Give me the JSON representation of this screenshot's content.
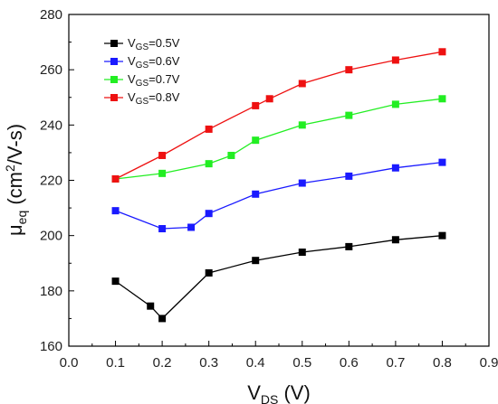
{
  "chart_data": {
    "type": "line",
    "xlabel": {
      "main": "V",
      "sub": "DS",
      "rest": " (V)"
    },
    "ylabel": {
      "main": "μ",
      "sub": "eq",
      "mid": " (cm",
      "sup": "2",
      "rest": "/V-s)"
    },
    "xlim": [
      0.0,
      0.9
    ],
    "ylim": [
      160,
      280
    ],
    "xticks": [
      "0.0",
      "0.1",
      "0.2",
      "0.3",
      "0.4",
      "0.5",
      "0.6",
      "0.7",
      "0.8",
      "0.9"
    ],
    "yticks": [
      "160",
      "180",
      "200",
      "220",
      "240",
      "260",
      "280"
    ],
    "grid": false,
    "legend_position": "top-left",
    "series": [
      {
        "name": {
          "main": "V",
          "sub": "GS",
          "rest": "=0.5V"
        },
        "color": "#000000",
        "marker": "square",
        "x": [
          0.1,
          0.175,
          0.2,
          0.3,
          0.4,
          0.5,
          0.6,
          0.7,
          0.8
        ],
        "y": [
          183.5,
          174.5,
          170,
          186.5,
          191,
          194,
          196,
          198.5,
          200
        ]
      },
      {
        "name": {
          "main": "V",
          "sub": "GS",
          "rest": "=0.6V"
        },
        "color": "#1a1aff",
        "marker": "square",
        "x": [
          0.1,
          0.2,
          0.262,
          0.3,
          0.4,
          0.5,
          0.6,
          0.7,
          0.8
        ],
        "y": [
          209,
          202.5,
          203,
          208,
          215,
          219,
          221.5,
          224.5,
          226.5
        ]
      },
      {
        "name": {
          "main": "V",
          "sub": "GS",
          "rest": "=0.7V"
        },
        "color": "#22ee22",
        "marker": "square",
        "x": [
          0.1,
          0.2,
          0.3,
          0.348,
          0.4,
          0.5,
          0.6,
          0.7,
          0.8
        ],
        "y": [
          220.5,
          222.5,
          226,
          229,
          234.5,
          240,
          243.5,
          247.5,
          249.5
        ]
      },
      {
        "name": {
          "main": "V",
          "sub": "GS",
          "rest": "=0.8V"
        },
        "color": "#ee1111",
        "marker": "square",
        "x": [
          0.1,
          0.2,
          0.3,
          0.4,
          0.43,
          0.5,
          0.6,
          0.7,
          0.8
        ],
        "y": [
          220.5,
          229,
          238.5,
          247,
          249.5,
          255,
          260,
          263.5,
          266.5
        ]
      }
    ]
  }
}
